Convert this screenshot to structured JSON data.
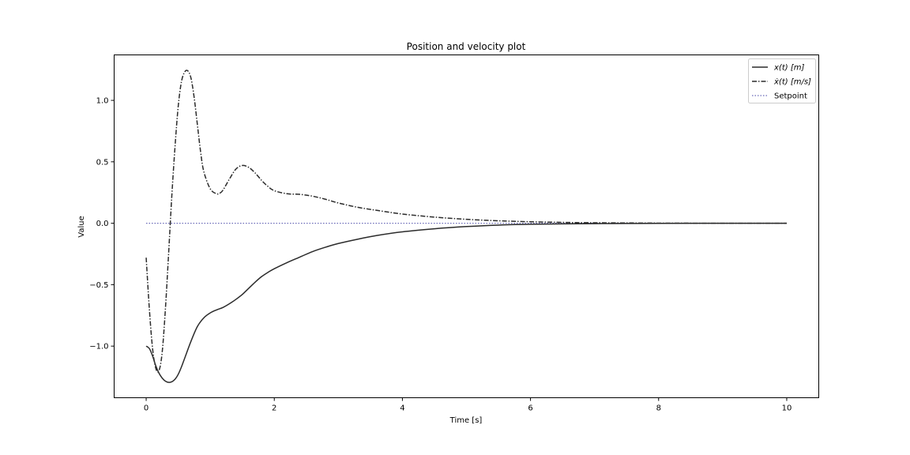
{
  "chart_data": {
    "type": "line",
    "title": "Position and velocity plot",
    "xlabel": "Time [s]",
    "ylabel": "Value",
    "xlim": [
      -0.5,
      10.5
    ],
    "ylim": [
      -1.42,
      1.37
    ],
    "xticks": [
      0,
      2,
      4,
      6,
      8,
      10
    ],
    "xtick_labels": [
      "0",
      "2",
      "4",
      "6",
      "8",
      "10"
    ],
    "yticks": [
      -1.0,
      -0.5,
      0.0,
      0.5,
      1.0
    ],
    "ytick_labels": [
      "−1.0",
      "−0.5",
      "0.0",
      "0.5",
      "1.0"
    ],
    "grid": false,
    "legend_position": "top-right",
    "series": [
      {
        "name": "x(t) [m]",
        "style": "solid",
        "color": "#2b2b2b",
        "x": [
          0,
          0.05,
          0.1,
          0.15,
          0.2,
          0.25,
          0.3,
          0.35,
          0.4,
          0.45,
          0.5,
          0.55,
          0.6,
          0.7,
          0.8,
          0.9,
          1.0,
          1.1,
          1.2,
          1.3,
          1.4,
          1.5,
          1.6,
          1.7,
          1.8,
          1.9,
          2.0,
          2.2,
          2.4,
          2.6,
          2.8,
          3.0,
          3.3,
          3.6,
          4.0,
          4.5,
          5.0,
          5.5,
          6.0,
          6.5,
          7.0,
          7.5,
          8.0,
          9.0,
          10.0
        ],
        "y": [
          -1.0,
          -1.02,
          -1.08,
          -1.16,
          -1.22,
          -1.26,
          -1.285,
          -1.295,
          -1.29,
          -1.27,
          -1.23,
          -1.17,
          -1.1,
          -0.96,
          -0.84,
          -0.77,
          -0.73,
          -0.705,
          -0.685,
          -0.655,
          -0.62,
          -0.58,
          -0.53,
          -0.48,
          -0.435,
          -0.4,
          -0.37,
          -0.32,
          -0.275,
          -0.23,
          -0.195,
          -0.165,
          -0.13,
          -0.1,
          -0.07,
          -0.045,
          -0.027,
          -0.015,
          -0.008,
          -0.005,
          -0.003,
          -0.002,
          -0.001,
          0.0,
          0.0
        ]
      },
      {
        "name": "ẋ(t) [m/s]",
        "style": "dashdot",
        "color": "#2b2b2b",
        "x": [
          0,
          0.05,
          0.1,
          0.15,
          0.2,
          0.25,
          0.3,
          0.35,
          0.4,
          0.45,
          0.5,
          0.55,
          0.6,
          0.65,
          0.7,
          0.75,
          0.8,
          0.85,
          0.9,
          1.0,
          1.1,
          1.15,
          1.2,
          1.3,
          1.4,
          1.5,
          1.6,
          1.7,
          1.8,
          1.9,
          2.0,
          2.2,
          2.4,
          2.6,
          2.8,
          3.0,
          3.3,
          3.6,
          4.0,
          4.5,
          5.0,
          5.5,
          6.0,
          6.5,
          7.0,
          8.0,
          9.0,
          10.0
        ],
        "y": [
          -0.28,
          -0.7,
          -1.02,
          -1.18,
          -1.2,
          -1.05,
          -0.7,
          -0.25,
          0.22,
          0.62,
          0.95,
          1.15,
          1.23,
          1.24,
          1.18,
          1.02,
          0.8,
          0.58,
          0.42,
          0.28,
          0.24,
          0.245,
          0.27,
          0.36,
          0.44,
          0.47,
          0.455,
          0.41,
          0.35,
          0.3,
          0.265,
          0.24,
          0.235,
          0.22,
          0.195,
          0.165,
          0.13,
          0.105,
          0.075,
          0.05,
          0.032,
          0.02,
          0.012,
          0.007,
          0.004,
          0.001,
          0.0,
          0.0
        ]
      },
      {
        "name": "Setpoint",
        "style": "dotted",
        "color": "#6a6ab8",
        "x": [
          0,
          10
        ],
        "y": [
          0,
          0
        ]
      }
    ]
  }
}
